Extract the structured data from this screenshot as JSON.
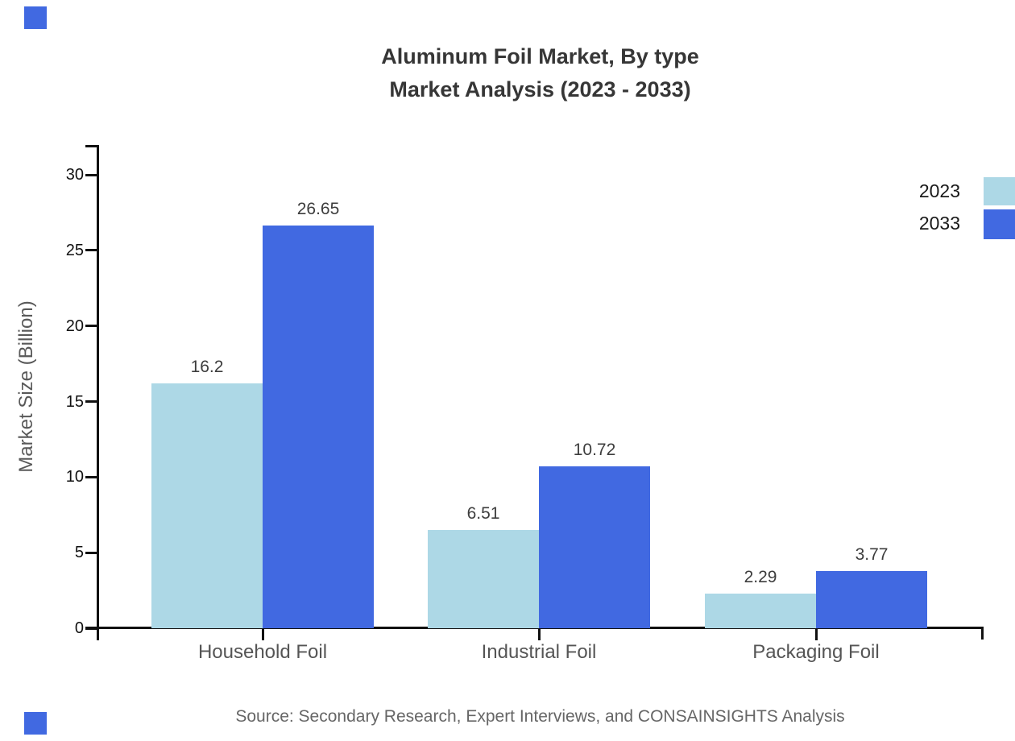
{
  "chart_data": {
    "type": "bar",
    "title": "Aluminum Foil Market, By type",
    "subtitle": "Market Analysis (2023 - 2033)",
    "ylabel": "Market Size (Billion)",
    "categories": [
      "Household Foil",
      "Industrial Foil",
      "Packaging Foil"
    ],
    "series": [
      {
        "name": "2023",
        "color": "#ADD8E6",
        "values": [
          16.2,
          6.51,
          2.29
        ],
        "value_labels": [
          "16.2",
          "6.51",
          "2.29"
        ]
      },
      {
        "name": "2033",
        "color": "#4169E1",
        "values": [
          26.65,
          10.72,
          3.77
        ],
        "value_labels": [
          "26.65",
          "10.72",
          "3.77"
        ]
      }
    ],
    "yticks": [
      0,
      5,
      10,
      15,
      20,
      25,
      30
    ],
    "ylim": [
      0,
      32
    ],
    "grid": false,
    "legend_position": "top-right",
    "source": "Source: Secondary Research, Expert Interviews, and CONSAINSIGHTS Analysis",
    "axis_color": "#111111"
  }
}
